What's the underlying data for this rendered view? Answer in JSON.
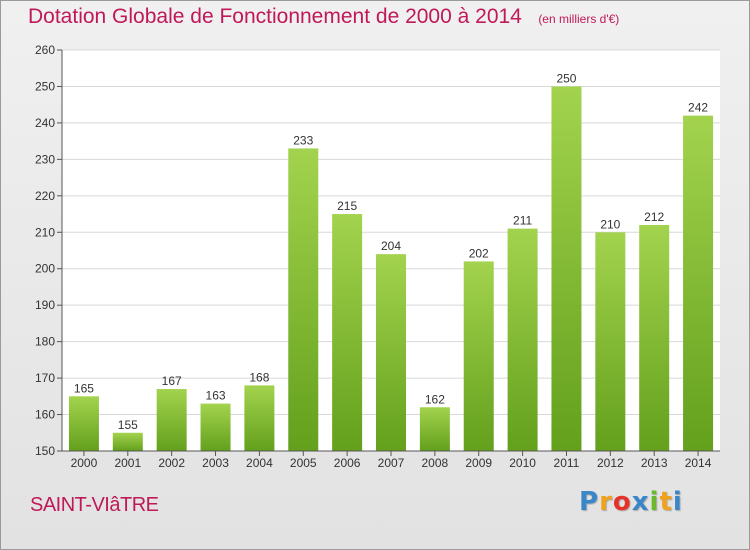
{
  "chart_data": {
    "type": "bar",
    "title": "Dotation Globale de Fonctionnement de 2000 à 2014",
    "unit_note": "(en milliers d'€)",
    "categories": [
      "2000",
      "2001",
      "2002",
      "2003",
      "2004",
      "2005",
      "2006",
      "2007",
      "2008",
      "2009",
      "2010",
      "2011",
      "2012",
      "2013",
      "2014"
    ],
    "values": [
      165,
      155,
      167,
      163,
      168,
      233,
      215,
      204,
      162,
      202,
      211,
      250,
      210,
      212,
      242
    ],
    "ylim": [
      150,
      260
    ],
    "yticks": [
      150,
      160,
      170,
      180,
      190,
      200,
      210,
      220,
      230,
      240,
      250,
      260
    ],
    "grid": true,
    "bar_color_light": "#a3d34e",
    "bar_color_dark": "#63a01c",
    "value_labels": true
  },
  "commune": "SAINT-VIâTRE",
  "logo_letters": [
    "P",
    "r",
    "o",
    "x",
    "i",
    "t",
    "i"
  ],
  "colors": {
    "title": "#c0195a",
    "grid": "#d8d8d8",
    "axis": "#555555"
  }
}
